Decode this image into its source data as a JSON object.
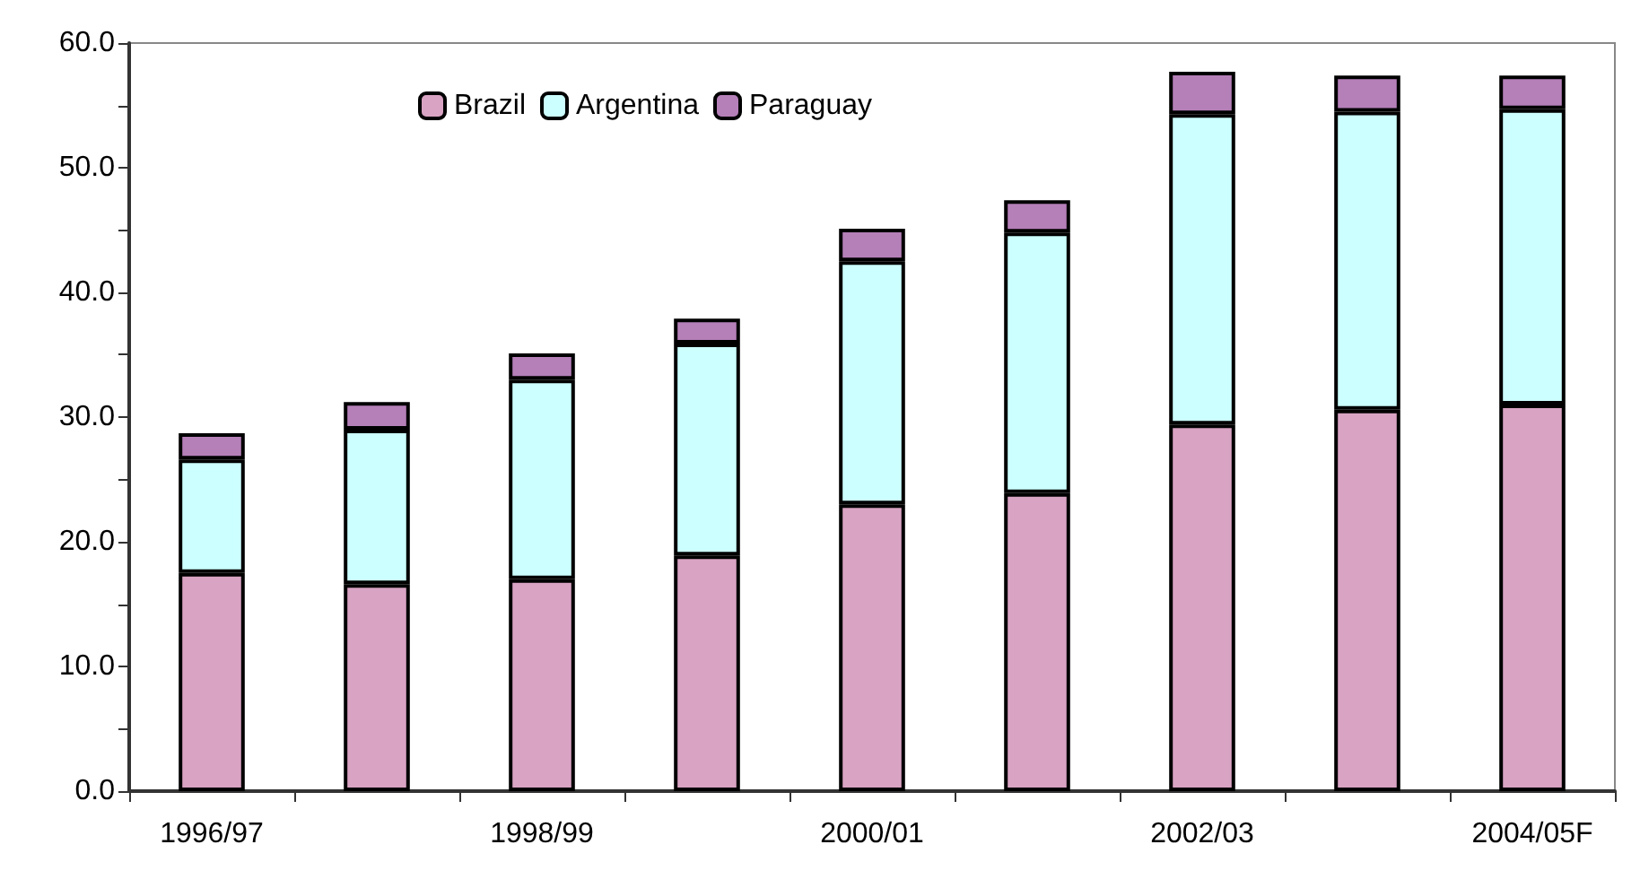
{
  "chart_data": {
    "type": "bar",
    "stacked": true,
    "categories": [
      "1996/97",
      null,
      "1998/99",
      null,
      "2000/01",
      null,
      "2002/03",
      null,
      "2004/05F"
    ],
    "series": [
      {
        "name": "Brazil",
        "color": "#d9a3c3",
        "values": [
          17.5,
          16.6,
          17.0,
          18.9,
          23.0,
          23.9,
          29.4,
          30.6,
          31.0
        ]
      },
      {
        "name": "Argentina",
        "color": "#ccffff",
        "values": [
          9.1,
          12.4,
          16.0,
          17.0,
          19.5,
          20.9,
          24.9,
          23.9,
          23.7
        ]
      },
      {
        "name": "Paraguay",
        "color": "#b57fb8",
        "values": [
          2.1,
          2.2,
          2.1,
          2.0,
          2.6,
          2.6,
          3.4,
          2.9,
          2.7
        ]
      }
    ],
    "ylim": [
      0,
      60
    ],
    "yticks": [
      {
        "value": 0,
        "label": "0.0"
      },
      {
        "value": 5,
        "label": null
      },
      {
        "value": 10,
        "label": "10.0"
      },
      {
        "value": 15,
        "label": null
      },
      {
        "value": 20,
        "label": "20.0"
      },
      {
        "value": 25,
        "label": null
      },
      {
        "value": 30,
        "label": "30.0"
      },
      {
        "value": 35,
        "label": null
      },
      {
        "value": 40,
        "label": "40.0"
      },
      {
        "value": 45,
        "label": null
      },
      {
        "value": 50,
        "label": "50.0"
      },
      {
        "value": 55,
        "label": null
      },
      {
        "value": 60,
        "label": "60.0"
      }
    ],
    "grid": false,
    "legend": "top"
  }
}
